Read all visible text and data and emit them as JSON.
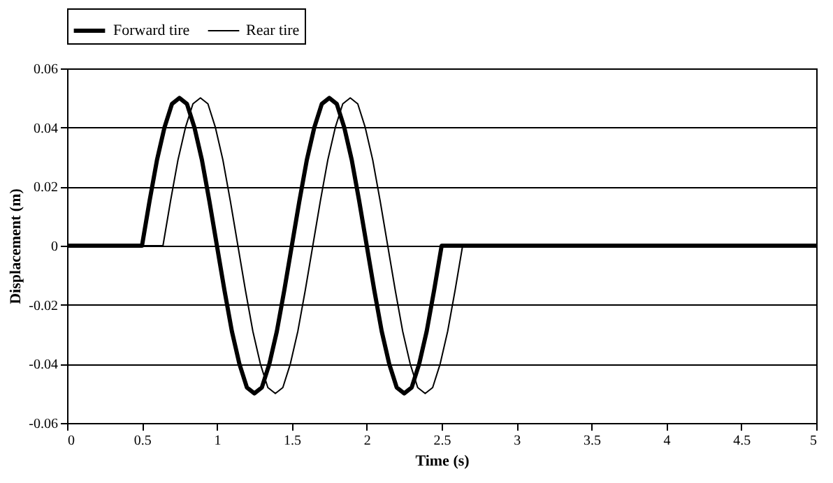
{
  "chart_data": {
    "type": "line",
    "xlabel": "Time (s)",
    "ylabel": "Displacement (m)",
    "xlim": [
      0,
      5
    ],
    "xticks": [
      0,
      0.5,
      1,
      1.5,
      2,
      2.5,
      3,
      3.5,
      4,
      4.5,
      5
    ],
    "ylim": [
      -0.06,
      0.06
    ],
    "yticks": [
      -0.06,
      -0.04,
      -0.02,
      0,
      0.02,
      0.04,
      0.06
    ],
    "grid": "y",
    "legend": "top",
    "marker": "none",
    "line_style": "solid",
    "series": [
      {
        "name": "Forward tire",
        "color": "#000000",
        "x": [
          0,
          0.5,
          0.55,
          0.6,
          0.65,
          0.7,
          0.75,
          0.8,
          0.85,
          0.9,
          0.95,
          1,
          1.05,
          1.1,
          1.15,
          1.2,
          1.25,
          1.3,
          1.35,
          1.4,
          1.45,
          1.5,
          1.55,
          1.6,
          1.65,
          1.7,
          1.75,
          1.8,
          1.85,
          1.9,
          1.95,
          2,
          2.05,
          2.1,
          2.15,
          2.2,
          2.25,
          2.3,
          2.35,
          2.4,
          2.45,
          2.5,
          5
        ],
        "values": [
          0,
          0,
          0.015,
          0.029,
          0.04,
          0.048,
          0.05,
          0.048,
          0.04,
          0.029,
          0.015,
          0,
          -0.015,
          -0.029,
          -0.04,
          -0.048,
          -0.05,
          -0.048,
          -0.04,
          -0.029,
          -0.015,
          0,
          0.015,
          0.029,
          0.04,
          0.048,
          0.05,
          0.048,
          0.04,
          0.029,
          0.015,
          0,
          -0.015,
          -0.029,
          -0.04,
          -0.048,
          -0.05,
          -0.048,
          -0.04,
          -0.029,
          -0.015,
          0,
          0
        ]
      },
      {
        "name": "Rear tire",
        "color": "#000000",
        "x": [
          0,
          0.64,
          0.69,
          0.74,
          0.79,
          0.84,
          0.89,
          0.94,
          0.99,
          1.04,
          1.09,
          1.14,
          1.19,
          1.24,
          1.29,
          1.34,
          1.39,
          1.44,
          1.49,
          1.54,
          1.59,
          1.64,
          1.69,
          1.74,
          1.79,
          1.84,
          1.89,
          1.94,
          1.99,
          2.04,
          2.09,
          2.14,
          2.19,
          2.24,
          2.29,
          2.34,
          2.39,
          2.44,
          2.49,
          2.54,
          2.59,
          2.64,
          5
        ],
        "values": [
          0,
          0,
          0.015,
          0.029,
          0.04,
          0.048,
          0.05,
          0.048,
          0.04,
          0.029,
          0.015,
          0,
          -0.015,
          -0.029,
          -0.04,
          -0.048,
          -0.05,
          -0.048,
          -0.04,
          -0.029,
          -0.015,
          0,
          0.015,
          0.029,
          0.04,
          0.048,
          0.05,
          0.048,
          0.04,
          0.029,
          0.015,
          0,
          -0.015,
          -0.029,
          -0.04,
          -0.048,
          -0.05,
          -0.048,
          -0.04,
          -0.029,
          -0.015,
          0,
          0
        ]
      }
    ]
  }
}
